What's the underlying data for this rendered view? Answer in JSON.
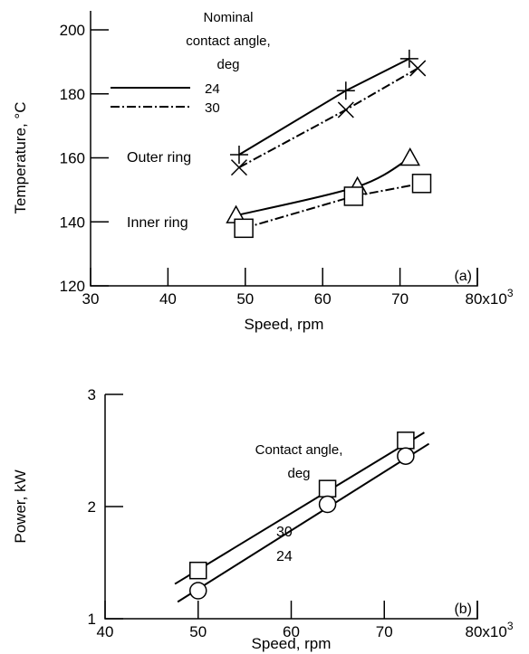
{
  "chart_data": [
    {
      "id": "a",
      "type": "line",
      "panel_label": "(a)",
      "xlabel": "Speed, rpm",
      "ylabel": "Temperature, °C",
      "x_ticks": [
        "30",
        "40",
        "50",
        "60",
        "70",
        "80x10"
      ],
      "x_tick_exponent": "3",
      "y_ticks": [
        "120",
        "140",
        "160",
        "180",
        "200"
      ],
      "xlim": [
        30,
        80
      ],
      "ylim": [
        120,
        205
      ],
      "legend": {
        "title": [
          "Nominal",
          "contact angle,",
          "deg"
        ],
        "entries": [
          {
            "label": "24",
            "style": "solid"
          },
          {
            "label": "30",
            "style": "dash-dot"
          }
        ]
      },
      "curve_labels": [
        {
          "text": "Outer ring",
          "series": "outer"
        },
        {
          "text": "Inner ring",
          "series": "inner"
        }
      ],
      "series": [
        {
          "ring": "outer",
          "angle": "24",
          "marker": "plus",
          "style": "solid",
          "x": [
            49.2,
            63.0,
            71.2
          ],
          "y": [
            161,
            181,
            191
          ]
        },
        {
          "ring": "outer",
          "angle": "30",
          "marker": "x",
          "style": "dash-dot",
          "x": [
            49.2,
            63.0,
            72.3
          ],
          "y": [
            157,
            175,
            188
          ]
        },
        {
          "ring": "inner",
          "angle": "24",
          "marker": "triangle",
          "style": "solid",
          "x": [
            48.8,
            64.5,
            71.3
          ],
          "y": [
            142,
            151,
            160
          ]
        },
        {
          "ring": "inner",
          "angle": "30",
          "marker": "square",
          "style": "dash-dot",
          "x": [
            49.8,
            64.0,
            72.8
          ],
          "y": [
            138,
            148,
            152
          ]
        }
      ]
    },
    {
      "id": "b",
      "type": "line",
      "panel_label": "(b)",
      "xlabel": "Speed, rpm",
      "ylabel": "Power, kW",
      "x_ticks": [
        "40",
        "50",
        "60",
        "70",
        "80x10"
      ],
      "x_tick_exponent": "3",
      "y_ticks": [
        "1",
        "2",
        "3"
      ],
      "xlim": [
        40,
        80
      ],
      "ylim": [
        1,
        3
      ],
      "legend": {
        "title": [
          "Contact angle,",
          "deg"
        ]
      },
      "curve_labels": [
        {
          "text": "30",
          "series": "30"
        },
        {
          "text": "24",
          "series": "24"
        }
      ],
      "series": [
        {
          "angle": "30",
          "marker": "square",
          "points_x": [
            50.0,
            63.9,
            72.3
          ],
          "points_y": [
            1.43,
            2.16,
            2.59
          ],
          "fit_x": [
            47.5,
            74.3
          ],
          "fit_y": [
            1.31,
            2.66
          ]
        },
        {
          "angle": "24",
          "marker": "circle",
          "points_x": [
            50.0,
            63.9,
            72.3
          ],
          "points_y": [
            1.25,
            2.02,
            2.45
          ],
          "fit_x": [
            47.8,
            74.8
          ],
          "fit_y": [
            1.15,
            2.56
          ]
        }
      ]
    }
  ]
}
